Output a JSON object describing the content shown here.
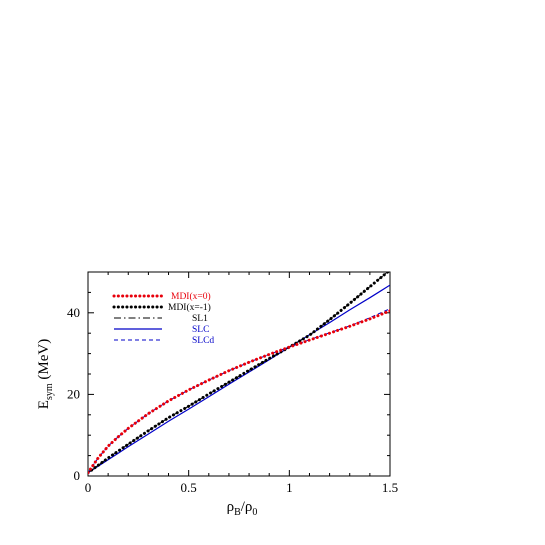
{
  "chart_data": {
    "type": "line",
    "title": "",
    "xlabel": {
      "main": "ρ",
      "sub": "B",
      "sep": "/ρ",
      "sub2": "0"
    },
    "ylabel": {
      "main": "E",
      "sub": "sym",
      "rest": " (MeV)"
    },
    "xlim": [
      0,
      1.5
    ],
    "ylim": [
      0,
      50
    ],
    "xticks": [
      0,
      0.5,
      1,
      1.5
    ],
    "xtick_labels": [
      "0",
      "0.5",
      "1",
      "1.5"
    ],
    "yticks": [
      0,
      20,
      40
    ],
    "ytick_labels": [
      "0",
      "20",
      "40"
    ],
    "grid": false,
    "legend_position": "top-left",
    "x": [
      0,
      0.05,
      0.1,
      0.15,
      0.2,
      0.3,
      0.4,
      0.5,
      0.6,
      0.7,
      0.8,
      0.9,
      1.0,
      1.1,
      1.2,
      1.3,
      1.4,
      1.5
    ],
    "series": [
      {
        "name": "MDI(x=0)",
        "color": "#e8000b",
        "style": "dotted-thick",
        "values": [
          0.8,
          4.4,
          7.3,
          9.6,
          11.7,
          15.3,
          18.4,
          21.1,
          23.5,
          25.8,
          27.9,
          29.8,
          31.6,
          33.3,
          35.0,
          36.7,
          38.5,
          40.5
        ]
      },
      {
        "name": "MDI(x=-1)",
        "color": "#000000",
        "style": "dotted-thick",
        "values": [
          0.8,
          2.6,
          4.4,
          6.1,
          7.8,
          11.1,
          14.3,
          17.1,
          20.1,
          23.0,
          25.9,
          28.8,
          31.6,
          34.5,
          38.3,
          42.3,
          46.4,
          50.5
        ]
      },
      {
        "name": "SL1",
        "color": "#000000",
        "style": "dash-dot",
        "values": [
          0.8,
          2.6,
          4.4,
          6.1,
          7.8,
          11.1,
          14.3,
          17.1,
          20.1,
          23.0,
          25.9,
          28.8,
          31.6,
          34.5,
          38.3,
          42.3,
          46.4,
          50.5
        ]
      },
      {
        "name": "SLC",
        "color": "#0000c8",
        "style": "solid",
        "values": [
          0.8,
          2.4,
          4.0,
          5.6,
          7.2,
          10.3,
          13.4,
          16.4,
          19.4,
          22.5,
          25.5,
          28.5,
          31.6,
          34.6,
          37.6,
          40.7,
          43.7,
          46.8
        ]
      },
      {
        "name": "SLCd",
        "color": "#0000c8",
        "style": "dashed",
        "values": [
          0.8,
          4.4,
          7.3,
          9.6,
          11.7,
          15.3,
          18.4,
          21.1,
          23.5,
          25.8,
          27.9,
          29.8,
          31.6,
          33.4,
          35.1,
          36.8,
          38.8,
          41.0
        ]
      }
    ]
  }
}
